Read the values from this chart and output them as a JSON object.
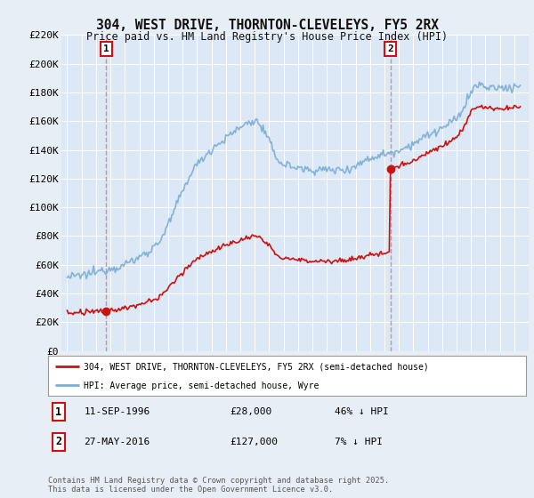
{
  "title1": "304, WEST DRIVE, THORNTON-CLEVELEYS, FY5 2RX",
  "title2": "Price paid vs. HM Land Registry's House Price Index (HPI)",
  "ylim": [
    0,
    220000
  ],
  "yticks": [
    0,
    20000,
    40000,
    60000,
    80000,
    100000,
    120000,
    140000,
    160000,
    180000,
    200000,
    220000
  ],
  "ytick_labels": [
    "£0",
    "£20K",
    "£40K",
    "£60K",
    "£80K",
    "£100K",
    "£120K",
    "£140K",
    "£160K",
    "£180K",
    "£200K",
    "£220K"
  ],
  "hpi_color": "#7aadd4",
  "price_color": "#cc1111",
  "sale1_value": 28000,
  "sale2_value": 127000,
  "sale1_year": 1996.71,
  "sale2_year": 2016.41,
  "legend1": "304, WEST DRIVE, THORNTON-CLEVELEYS, FY5 2RX (semi-detached house)",
  "legend2": "HPI: Average price, semi-detached house, Wyre",
  "footer": "Contains HM Land Registry data © Crown copyright and database right 2025.\nThis data is licensed under the Open Government Licence v3.0.",
  "background_color": "#e8eef5",
  "plot_bg": "#dce8f5",
  "grid_color": "#ffffff",
  "vline_color": "#cc8888"
}
